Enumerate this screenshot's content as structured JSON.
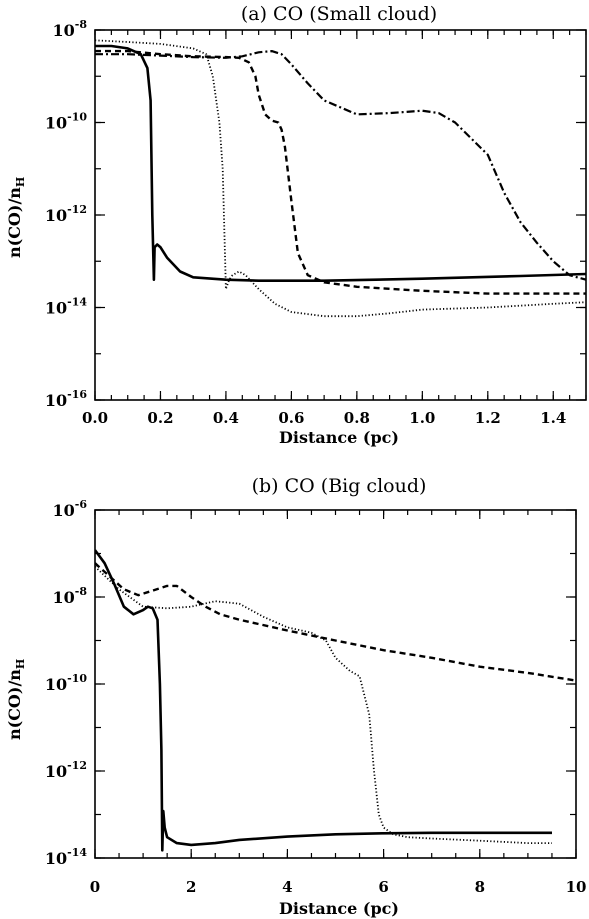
{
  "chart_data": [
    {
      "type": "line",
      "title": "(a) CO (Small cloud)",
      "xlabel": "Distance (pc)",
      "ylabel": "n(CO)/n",
      "ylabel_sub": "H",
      "yscale": "log",
      "xlim": [
        0,
        1.5
      ],
      "ylim": [
        1e-16,
        1e-08
      ],
      "x_ticks": [
        "0.0",
        "0.2",
        "0.4",
        "0.6",
        "0.8",
        "1.0",
        "1.2",
        "1.4"
      ],
      "x_tick_values": [
        0,
        0.2,
        0.4,
        0.6,
        0.8,
        1.0,
        1.2,
        1.4
      ],
      "y_ticks": [
        {
          "base": "10",
          "exp": "-8"
        },
        {
          "base": "10",
          "exp": "-10"
        },
        {
          "base": "10",
          "exp": "-12"
        },
        {
          "base": "10",
          "exp": "-14"
        },
        {
          "base": "10",
          "exp": "-16"
        }
      ],
      "y_tick_values": [
        1e-08,
        1e-10,
        1e-12,
        1e-14,
        1e-16
      ],
      "series": [
        {
          "style": "solid",
          "x": [
            0,
            0.05,
            0.1,
            0.14,
            0.16,
            0.17,
            0.175,
            0.18,
            0.182,
            0.19,
            0.2,
            0.22,
            0.26,
            0.3,
            0.4,
            0.5,
            0.7,
            1.0,
            1.3,
            1.5
          ],
          "y": [
            4.5e-09,
            4.5e-09,
            4e-09,
            3e-09,
            1.5e-09,
            3e-10,
            1e-12,
            4e-14,
            2e-13,
            2.3e-13,
            2e-13,
            1.2e-13,
            6e-14,
            4.5e-14,
            4e-14,
            3.8e-14,
            3.8e-14,
            4.2e-14,
            4.8e-14,
            5.3e-14
          ]
        },
        {
          "style": "dotted",
          "x": [
            0,
            0.1,
            0.2,
            0.3,
            0.34,
            0.36,
            0.38,
            0.39,
            0.395,
            0.4,
            0.41,
            0.42,
            0.44,
            0.46,
            0.5,
            0.55,
            0.6,
            0.7,
            0.8,
            0.9,
            1.0,
            1.2,
            1.4,
            1.5
          ],
          "y": [
            6e-09,
            5.5e-09,
            5e-09,
            4e-09,
            3e-09,
            1e-09,
            1e-10,
            1e-11,
            5e-13,
            2.5e-14,
            4e-14,
            5e-14,
            6e-14,
            5e-14,
            2.5e-14,
            1.2e-14,
            8e-15,
            6.5e-15,
            6.5e-15,
            7.5e-15,
            9e-15,
            1e-14,
            1.2e-14,
            1.3e-14
          ]
        },
        {
          "style": "dashed",
          "x": [
            0,
            0.1,
            0.2,
            0.3,
            0.4,
            0.44,
            0.47,
            0.49,
            0.5,
            0.52,
            0.54,
            0.56,
            0.57,
            0.58,
            0.6,
            0.62,
            0.65,
            0.7,
            0.8,
            1.0,
            1.2,
            1.5
          ],
          "y": [
            3.5e-09,
            3.5e-09,
            3e-09,
            2.7e-09,
            2.6e-09,
            2.5e-09,
            2e-09,
            1e-09,
            4e-10,
            1.5e-10,
            1.1e-10,
            1e-10,
            7e-11,
            3e-11,
            2e-12,
            1.5e-13,
            5e-14,
            3.5e-14,
            2.8e-14,
            2.3e-14,
            2e-14,
            2e-14
          ]
        },
        {
          "style": "dashdot",
          "x": [
            0,
            0.1,
            0.2,
            0.3,
            0.4,
            0.45,
            0.5,
            0.54,
            0.57,
            0.6,
            0.65,
            0.7,
            0.8,
            0.9,
            1.0,
            1.05,
            1.1,
            1.2,
            1.25,
            1.3,
            1.35,
            1.4,
            1.45,
            1.5
          ],
          "y": [
            3e-09,
            3e-09,
            2.8e-09,
            2.6e-09,
            2.5e-09,
            2.7e-09,
            3.3e-09,
            3.5e-09,
            3e-09,
            1.8e-09,
            7e-10,
            3e-10,
            1.5e-10,
            1.6e-10,
            1.8e-10,
            1.6e-10,
            1e-10,
            2e-11,
            3e-12,
            7e-13,
            2.5e-13,
            1e-13,
            5e-14,
            4e-14
          ]
        }
      ]
    },
    {
      "type": "line",
      "title": "(b) CO (Big cloud)",
      "xlabel": "Distance (pc)",
      "ylabel": "n(CO)/n",
      "ylabel_sub": "H",
      "yscale": "log",
      "xlim": [
        0,
        10
      ],
      "ylim": [
        1e-14,
        1e-06
      ],
      "x_ticks": [
        "0",
        "2",
        "4",
        "6",
        "8",
        "10"
      ],
      "x_tick_values": [
        0,
        2,
        4,
        6,
        8,
        10
      ],
      "y_ticks": [
        {
          "base": "10",
          "exp": "-6"
        },
        {
          "base": "10",
          "exp": "-8"
        },
        {
          "base": "10",
          "exp": "-10"
        },
        {
          "base": "10",
          "exp": "-12"
        },
        {
          "base": "10",
          "exp": "-14"
        }
      ],
      "y_tick_values": [
        1e-06,
        1e-08,
        1e-10,
        1e-12,
        1e-14
      ],
      "series": [
        {
          "style": "solid",
          "x": [
            0,
            0.2,
            0.4,
            0.6,
            0.8,
            1.0,
            1.1,
            1.2,
            1.3,
            1.35,
            1.38,
            1.4,
            1.42,
            1.45,
            1.5,
            1.7,
            2.0,
            2.5,
            3.0,
            4.0,
            5.0,
            6.0,
            7.0,
            8.0,
            9.0,
            9.5
          ],
          "y": [
            1.2e-07,
            6e-08,
            2e-08,
            6e-09,
            4e-09,
            5e-09,
            6e-09,
            5.5e-09,
            3e-09,
            1e-10,
            3e-12,
            1.5e-14,
            1.2e-13,
            5e-14,
            3e-14,
            2.2e-14,
            2e-14,
            2.2e-14,
            2.6e-14,
            3.1e-14,
            3.5e-14,
            3.7e-14,
            3.8e-14,
            3.8e-14,
            3.8e-14,
            3.8e-14
          ]
        },
        {
          "style": "dotted",
          "x": [
            0,
            0.5,
            1.0,
            1.5,
            2.0,
            2.5,
            3.0,
            3.5,
            4.0,
            4.5,
            4.8,
            5.0,
            5.3,
            5.5,
            5.7,
            5.8,
            5.9,
            6.0,
            6.2,
            6.5,
            7.0,
            8.0,
            9.0,
            9.5
          ],
          "y": [
            5e-08,
            1.5e-08,
            6e-09,
            5.5e-09,
            6e-09,
            8e-09,
            7e-09,
            3.5e-09,
            2e-09,
            1.5e-09,
            1e-09,
            4e-10,
            2e-10,
            1.5e-10,
            2e-11,
            1e-12,
            1e-13,
            5e-14,
            3.5e-14,
            3e-14,
            2.8e-14,
            2.5e-14,
            2.2e-14,
            2.2e-14
          ]
        },
        {
          "style": "dashed",
          "x": [
            0,
            0.3,
            0.6,
            0.9,
            1.2,
            1.5,
            1.7,
            2.0,
            2.3,
            2.6,
            3.0,
            4.0,
            5.0,
            6.0,
            7.0,
            8.0,
            9.0,
            10.0
          ],
          "y": [
            6e-08,
            3e-08,
            1.5e-08,
            1.1e-08,
            1.4e-08,
            1.8e-08,
            1.8e-08,
            1e-08,
            6e-09,
            4e-09,
            3e-09,
            1.7e-09,
            1e-09,
            6e-10,
            4e-10,
            2.5e-10,
            1.8e-10,
            1.2e-10
          ]
        }
      ]
    }
  ]
}
